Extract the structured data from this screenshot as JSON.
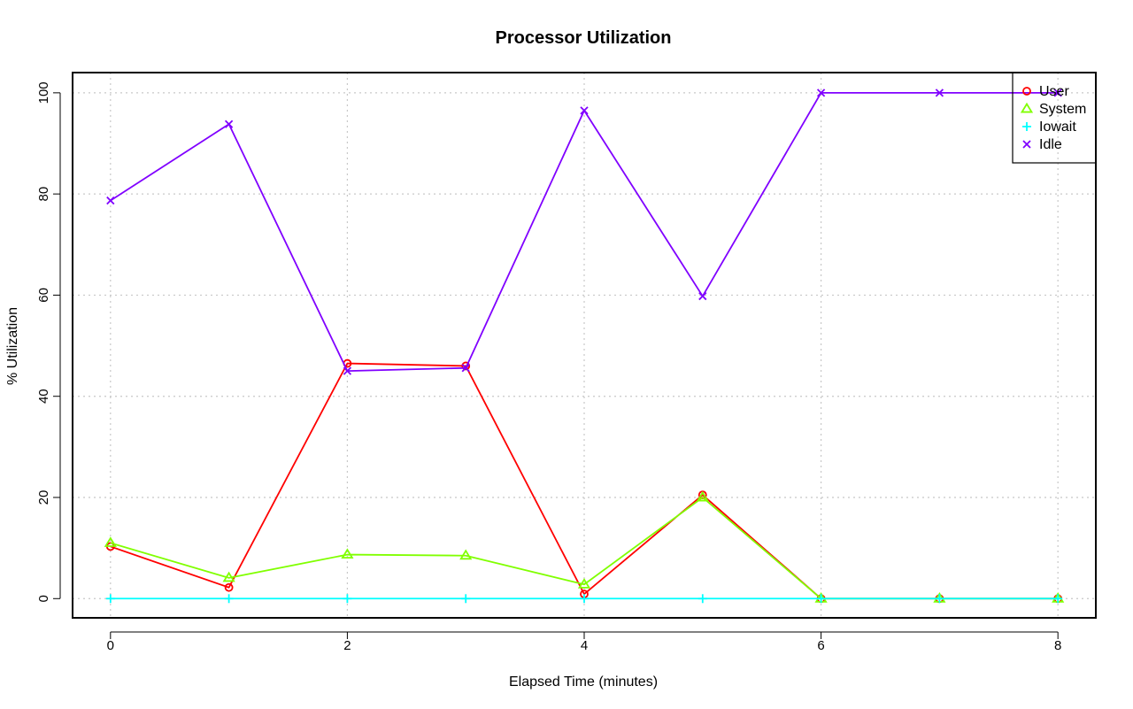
{
  "chart_data": {
    "type": "line",
    "title": "Processor Utilization",
    "xlabel": "Elapsed Time (minutes)",
    "ylabel": "% Utilization",
    "x": [
      0,
      1,
      2,
      3,
      4,
      5,
      6,
      7,
      8
    ],
    "xlim": [
      -0.32,
      8.32
    ],
    "ylim": [
      -3.8,
      104
    ],
    "x_ticks": [
      "0",
      "2",
      "4",
      "6",
      "8"
    ],
    "y_ticks": [
      "0",
      "20",
      "40",
      "60",
      "80",
      "100"
    ],
    "grid": true,
    "legend_position": "top-right",
    "series": [
      {
        "name": "User",
        "color": "#ff0000",
        "marker": "circle",
        "values": [
          10.3,
          2.2,
          46.5,
          46.0,
          0.9,
          20.5,
          0.0,
          0.0,
          0.0
        ]
      },
      {
        "name": "System",
        "color": "#80ff00",
        "marker": "triangle",
        "values": [
          11.0,
          4.1,
          8.7,
          8.5,
          2.8,
          20.0,
          0.0,
          0.0,
          0.0
        ]
      },
      {
        "name": "Iowait",
        "color": "#00ffff",
        "marker": "plus",
        "values": [
          0.0,
          0.0,
          0.0,
          0.0,
          0.0,
          0.0,
          0.0,
          0.0,
          0.0
        ]
      },
      {
        "name": "Idle",
        "color": "#8000ff",
        "marker": "cross",
        "values": [
          78.7,
          93.8,
          45.0,
          45.6,
          96.5,
          59.8,
          100.0,
          100.0,
          100.0
        ]
      }
    ]
  }
}
